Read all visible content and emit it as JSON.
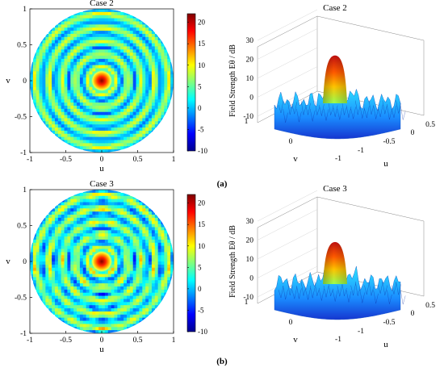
{
  "chart_data": [
    {
      "type": "heatmap",
      "panel": "a",
      "title": "Case 2",
      "xlabel": "u",
      "ylabel": "v",
      "xlim": [
        -1,
        1
      ],
      "ylim": [
        -1,
        1
      ],
      "xticks": [
        "-1",
        "-0.5",
        "0",
        "0.5",
        "1"
      ],
      "yticks": [
        "-1",
        "-0.5",
        "0",
        "0.5",
        "1"
      ],
      "colorbar": {
        "min": -10,
        "max": 22,
        "ticks": [
          "20",
          "15",
          "10",
          "5",
          "0",
          "-5",
          "-10"
        ]
      }
    },
    {
      "type": "surface",
      "panel": "a",
      "title": "Case 2",
      "zlabel": "Field Strength Eθ / dB",
      "xlabel": "u",
      "ylabel": "v",
      "zticks": [
        "30",
        "20",
        "10",
        "0",
        "-10"
      ],
      "uticks": [
        "-1",
        "-0.5",
        "0",
        "0.5"
      ],
      "vticks": [
        "-1",
        "0",
        "1"
      ],
      "zlim": [
        -10,
        30
      ],
      "peak": 22
    },
    {
      "type": "heatmap",
      "panel": "b",
      "title": "Case 3",
      "xlabel": "u",
      "ylabel": "v",
      "xlim": [
        -1,
        1
      ],
      "ylim": [
        -1,
        1
      ],
      "xticks": [
        "-1",
        "-0.5",
        "0",
        "0.5",
        "1"
      ],
      "yticks": [
        "-1",
        "-0.5",
        "0",
        "0.5",
        "1"
      ],
      "colorbar": {
        "min": -10,
        "max": 22,
        "ticks": [
          "20",
          "15",
          "10",
          "5",
          "0",
          "-5",
          "-10"
        ]
      }
    },
    {
      "type": "surface",
      "panel": "b",
      "title": "Case 3",
      "zlabel": "Field Strength Eθ / dB",
      "xlabel": "u",
      "ylabel": "v",
      "zticks": [
        "30",
        "20",
        "10",
        "0",
        "-10"
      ],
      "uticks": [
        "-1",
        "-0.5",
        "0",
        "0.5"
      ],
      "vticks": [
        "-1",
        "0",
        "1"
      ],
      "zlim": [
        -10,
        30
      ],
      "peak": 19
    }
  ],
  "captions": [
    "(a)",
    "(b)"
  ],
  "colors": {
    "jet_low": "#00008f",
    "jet_mid": "#00ffff",
    "jet_high": "#800000",
    "surface_top": "#e84010"
  }
}
